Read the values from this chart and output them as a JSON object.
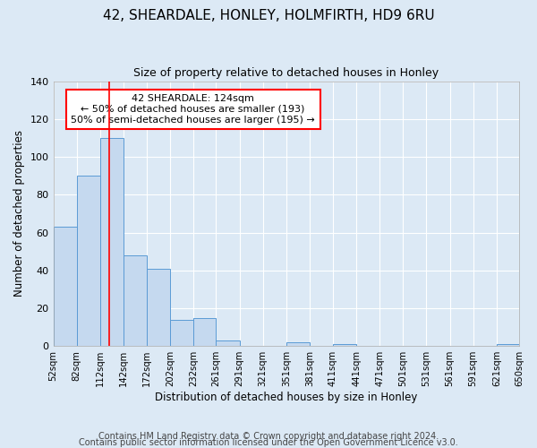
{
  "title": "42, SHEARDALE, HONLEY, HOLMFIRTH, HD9 6RU",
  "subtitle": "Size of property relative to detached houses in Honley",
  "xlabel": "Distribution of detached houses by size in Honley",
  "ylabel": "Number of detached properties",
  "bar_edges": [
    52,
    82,
    112,
    142,
    172,
    202,
    232,
    261,
    291,
    321,
    351,
    381,
    411,
    441,
    471,
    501,
    531,
    561,
    591,
    621,
    650
  ],
  "bar_heights": [
    63,
    90,
    110,
    48,
    41,
    14,
    15,
    3,
    0,
    0,
    2,
    0,
    1,
    0,
    0,
    0,
    0,
    0,
    0,
    1
  ],
  "bar_color": "#c5d9ef",
  "bar_edge_color": "#5b9bd5",
  "ylim": [
    0,
    140
  ],
  "yticks": [
    0,
    20,
    40,
    60,
    80,
    100,
    120,
    140
  ],
  "red_line_x": 124,
  "annotation_title": "42 SHEARDALE: 124sqm",
  "annotation_line1": "← 50% of detached houses are smaller (193)",
  "annotation_line2": "50% of semi-detached houses are larger (195) →",
  "footer_line1": "Contains HM Land Registry data © Crown copyright and database right 2024.",
  "footer_line2": "Contains public sector information licensed under the Open Government Licence v3.0.",
  "background_color": "#dce9f5",
  "plot_background": "#dce9f5",
  "grid_color": "#ffffff",
  "title_fontsize": 11,
  "subtitle_fontsize": 9,
  "footer_fontsize": 7
}
